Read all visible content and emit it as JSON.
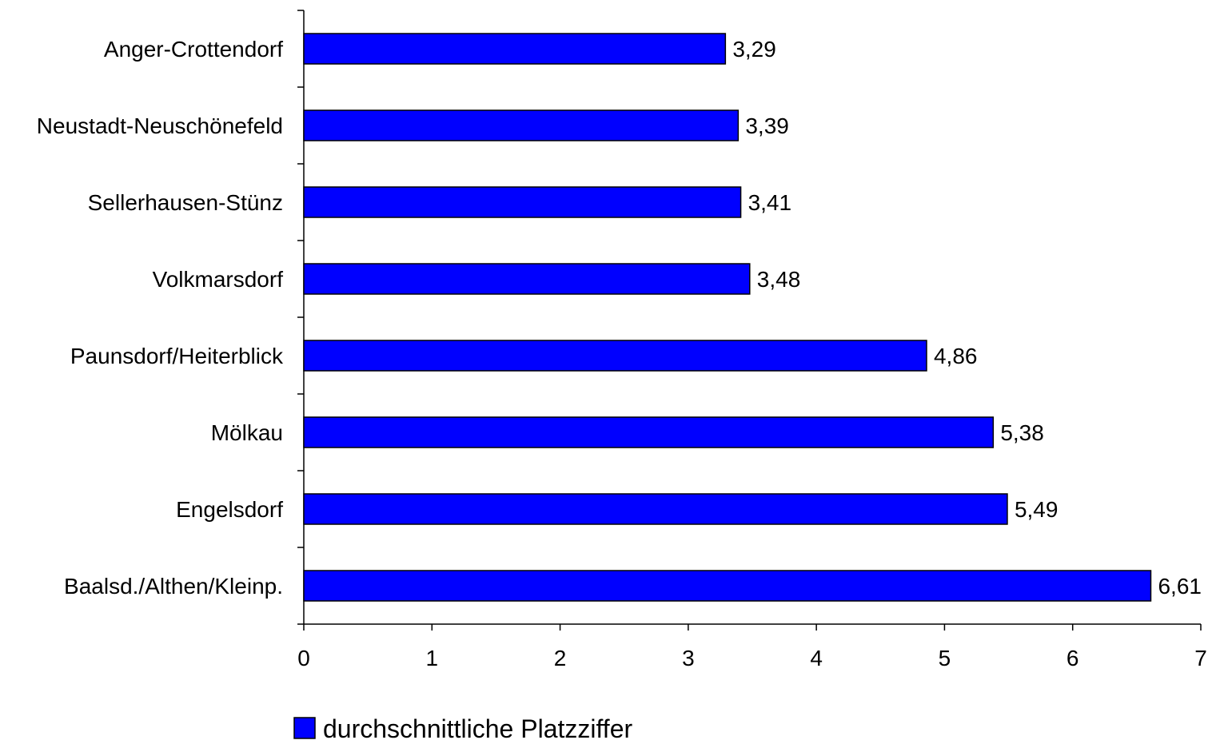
{
  "chart_data": {
    "type": "bar",
    "orientation": "horizontal",
    "categories": [
      "Anger-Crottendorf",
      "Neustadt-Neuschönefeld",
      "Sellerhausen-Stünz",
      "Volkmarsdorf",
      "Paunsdorf/Heiterblick",
      "Mölkau",
      "Engelsdorf",
      "Baalsd./Althen/Kleinp."
    ],
    "series": [
      {
        "name": "durchschnittliche Platzziffer",
        "values": [
          3.29,
          3.39,
          3.41,
          3.48,
          4.86,
          5.38,
          5.49,
          6.61
        ],
        "value_labels": [
          "3,29",
          "3,39",
          "3,41",
          "3,48",
          "4,86",
          "5,38",
          "5,49",
          "6,61"
        ],
        "color": "#0000FF"
      }
    ],
    "xlim": [
      0,
      7
    ],
    "x_ticks": [
      "0",
      "1",
      "2",
      "3",
      "4",
      "5",
      "6",
      "7"
    ],
    "grid": false,
    "legend_position": "bottom",
    "bar_border_color": "#000000"
  }
}
